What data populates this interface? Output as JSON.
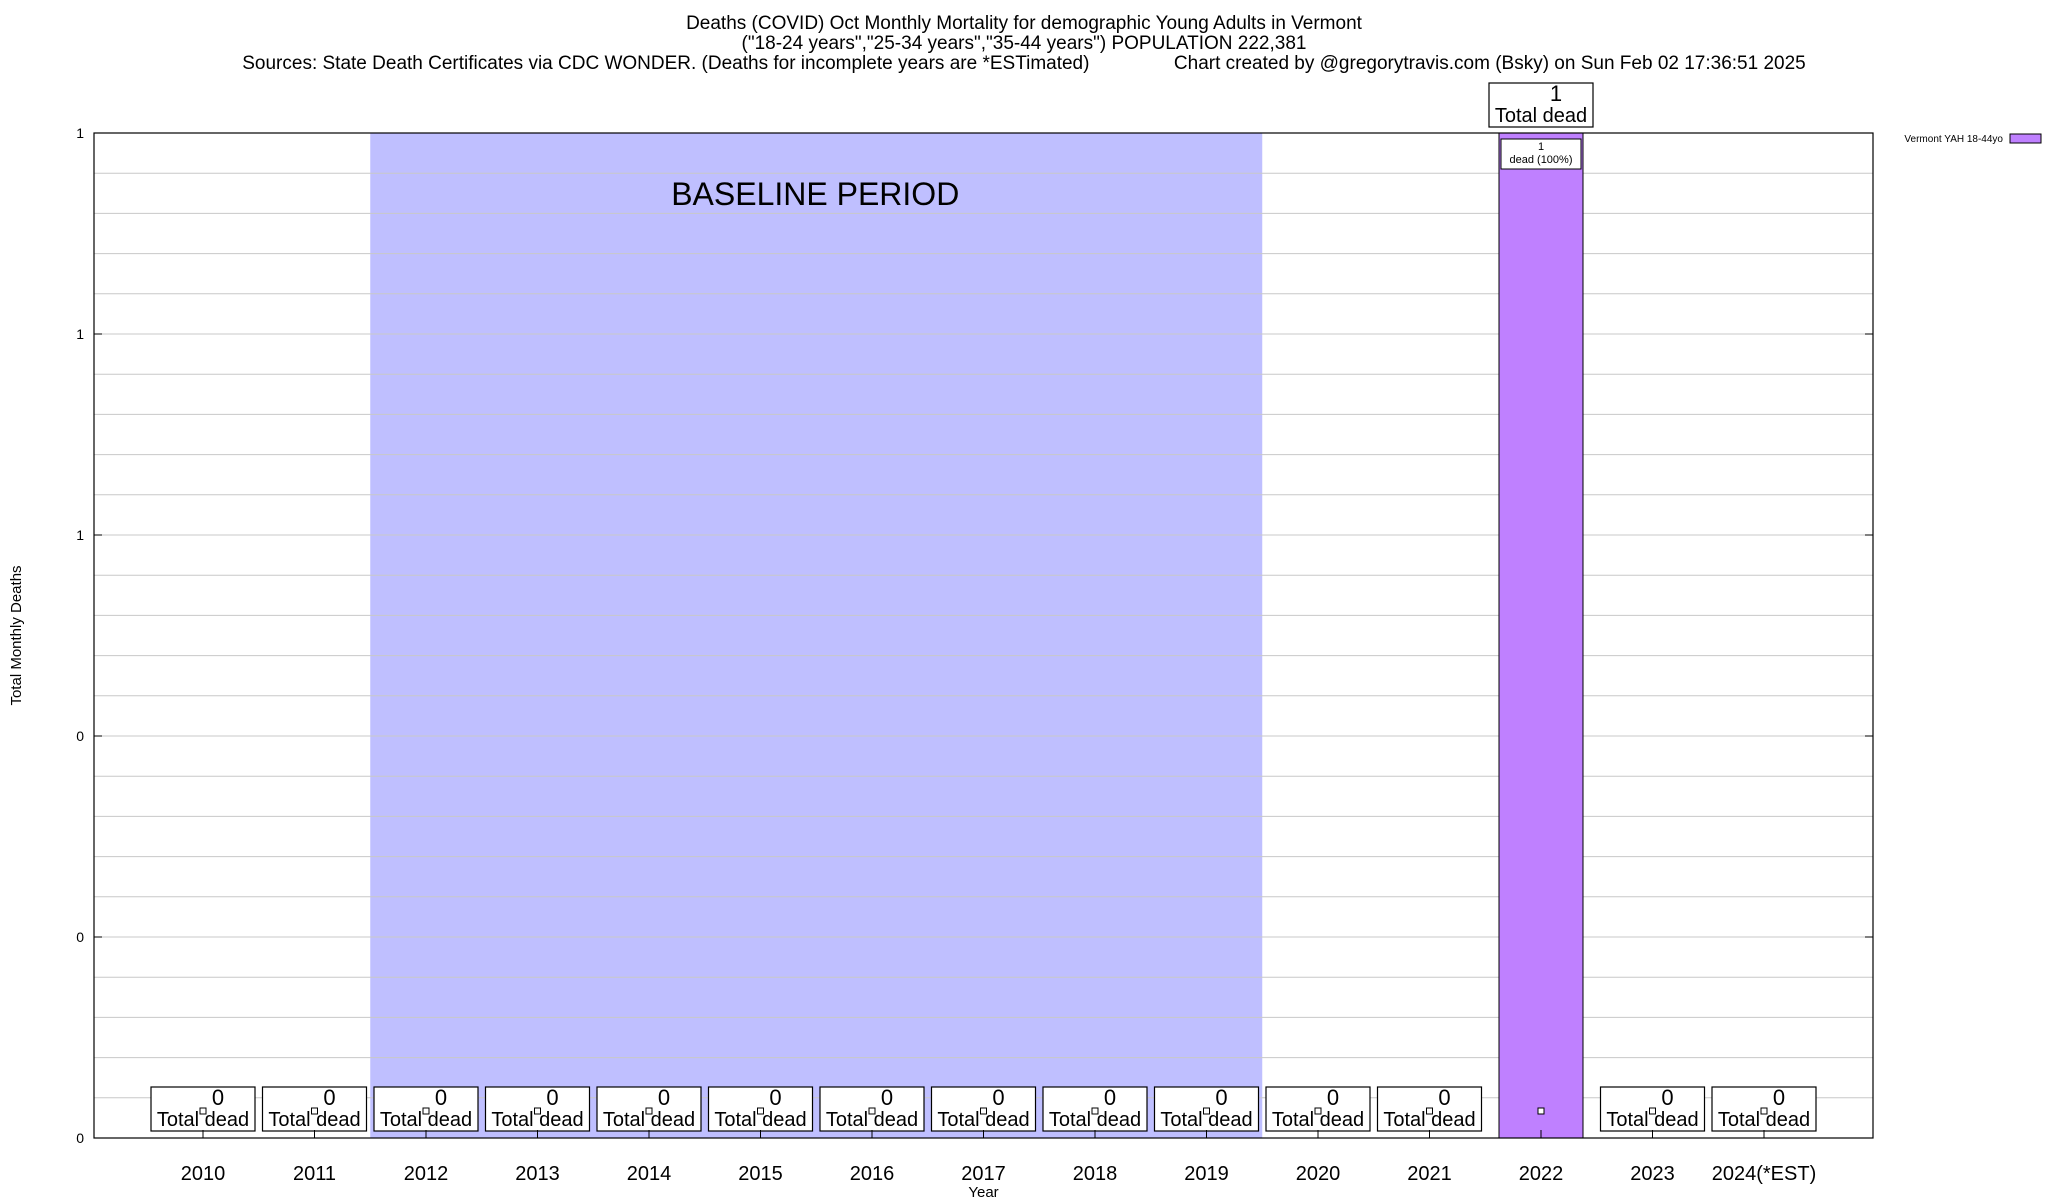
{
  "chart_data": {
    "type": "bar",
    "title_lines": [
      "Deaths (COVID) Oct Monthly Mortality for demographic Young Adults in Vermont",
      "(\"18-24 years\",\"25-34 years\",\"35-44 years\") POPULATION 222,381",
      "Sources: State Death Certificates via CDC WONDER. (Deaths for incomplete years are *ESTimated)                Chart created by @gregorytravis.com (Bsky) on Sun Feb 02 17:36:51 2025"
    ],
    "xlabel": "Year",
    "ylabel": "Total Monthly Deaths",
    "categories": [
      "2010",
      "2011",
      "2012",
      "2013",
      "2014",
      "2015",
      "2016",
      "2017",
      "2018",
      "2019",
      "2020",
      "2021",
      "2022",
      "2023",
      "2024(*EST)"
    ],
    "series": [
      {
        "name": "Vermont YAH 18-44yo",
        "color": "#bf80ff",
        "values": [
          0,
          0,
          0,
          0,
          0,
          0,
          0,
          0,
          0,
          0,
          0,
          0,
          1,
          0,
          0
        ]
      }
    ],
    "total_label_text": "Total dead",
    "bar_inner_label": "1\ndead (100%)",
    "ylim": [
      0,
      1
    ],
    "y_tick_labels": [
      "0",
      "0",
      "0",
      "1",
      "1",
      "1"
    ],
    "grid": true,
    "legend_position": "top-right",
    "baseline": {
      "label": "BASELINE PERIOD",
      "start": "2012",
      "end": "2019",
      "color": "#bfbfff"
    }
  }
}
